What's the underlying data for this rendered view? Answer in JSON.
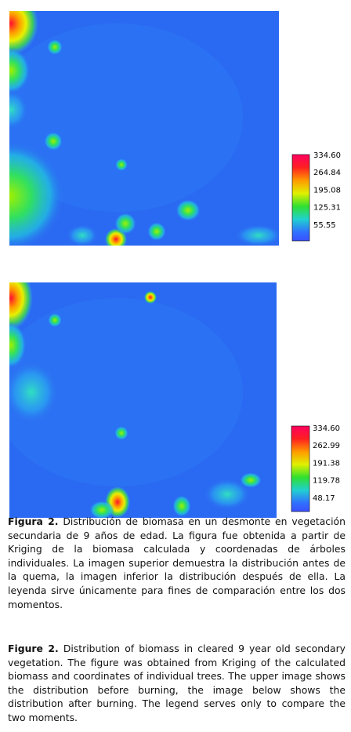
{
  "figures": [
    {
      "colorbar_labels": [
        "334.60",
        "264.84",
        "195.08",
        "125.31",
        "55.55"
      ]
    },
    {
      "colorbar_labels": [
        "334.60",
        "262.99",
        "191.38",
        "119.78",
        "48.17"
      ]
    }
  ],
  "captions": [
    {
      "label": "Figura 2.",
      "text": "Distribución de biomasa en un desmonte en vegetación secundaria de 9 años de edad. La figura fue obtenida a partir de Kriging de la biomasa calculada y coordenadas de árboles individuales. La imagen superior demuestra la distribución antes de la quema, la imagen inferior la distribución después de ella. La leyenda sirve únicamente para fines de comparación entre los dos momentos."
    },
    {
      "label": "Figure 2.",
      "text": "Distribution of biomass in cleared 9 year old secondary vegetation. The figure was obtained from Kriging of the calculated biomass and coordinates of individual trees. The upper image shows the distribution before burning, the image below shows the distribution after burning. The legend serves only to compare the two moments."
    }
  ]
}
